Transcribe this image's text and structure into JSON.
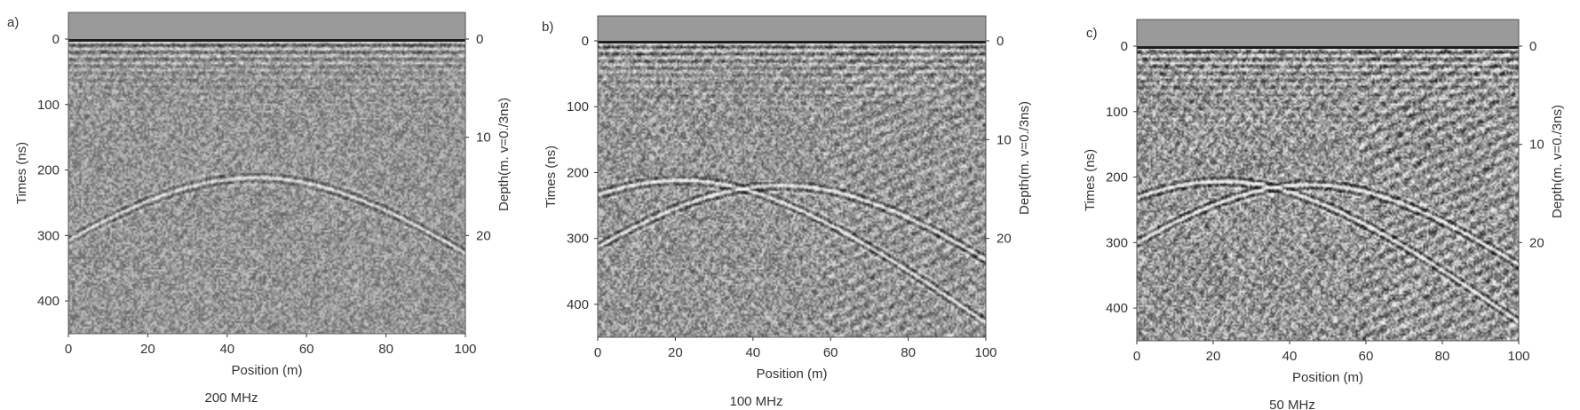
{
  "chart_data": [
    {
      "type": "heatmap",
      "panel_label": "a)",
      "caption": "200 MHz",
      "xlabel": "Position (m)",
      "ylabel": "Times (ns)",
      "y2label": "Depth(m. v=0./3ns)",
      "xlim": [
        0,
        100
      ],
      "ylim": [
        0,
        450
      ],
      "y2lim": [
        0,
        30
      ],
      "x_ticks": [
        0,
        20,
        40,
        60,
        80,
        100
      ],
      "y_ticks": [
        0,
        100,
        200,
        300,
        400
      ],
      "y2_ticks": [
        0,
        10,
        20
      ],
      "hyperbolas": [
        {
          "apex_x": 47,
          "apex_t": 210
        }
      ],
      "contrast": 0.35
    },
    {
      "type": "heatmap",
      "panel_label": "b)",
      "caption": "100 MHz",
      "xlabel": "Position (m)",
      "ylabel": "Times (ns)",
      "y2label": "Depth(m. v=0./3ns)",
      "xlim": [
        0,
        100
      ],
      "ylim": [
        0,
        450
      ],
      "y2lim": [
        0,
        30
      ],
      "x_ticks": [
        0,
        20,
        40,
        60,
        80,
        100
      ],
      "y_ticks": [
        0,
        100,
        200,
        300,
        400
      ],
      "y2_ticks": [
        0,
        10,
        20
      ],
      "hyperbolas": [
        {
          "apex_x": 21,
          "apex_t": 210
        },
        {
          "apex_x": 47,
          "apex_t": 218
        }
      ],
      "contrast": 0.6
    },
    {
      "type": "heatmap",
      "panel_label": "c)",
      "caption": "50 MHz",
      "xlabel": "Position (m)",
      "ylabel": "Times (ns)",
      "y2label": "Depth(m. v=0./3ns)",
      "xlim": [
        0,
        100
      ],
      "ylim": [
        0,
        450
      ],
      "y2lim": [
        0,
        30
      ],
      "x_ticks": [
        0,
        20,
        40,
        60,
        80,
        100
      ],
      "y_ticks": [
        0,
        100,
        200,
        300,
        400
      ],
      "y2_ticks": [
        0,
        10,
        20
      ],
      "hyperbolas": [
        {
          "apex_x": 22,
          "apex_t": 205
        },
        {
          "apex_x": 45,
          "apex_t": 210
        }
      ],
      "contrast": 0.9
    }
  ]
}
